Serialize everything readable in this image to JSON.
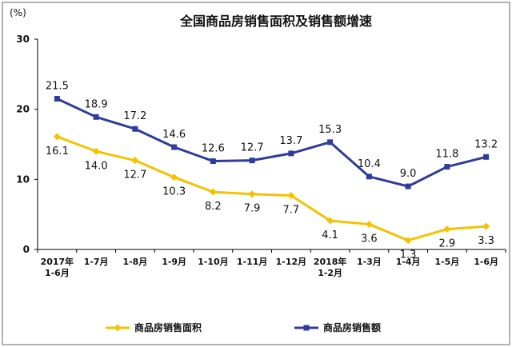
{
  "chart_data": {
    "type": "line",
    "title": "全国商品房销售面积及销售额增速",
    "ylabel": "(%)",
    "xlabel": "",
    "ylim": [
      0,
      30
    ],
    "yticks": [
      0,
      10,
      20,
      30
    ],
    "grid": false,
    "legend_position": "bottom",
    "categories": [
      "2017年\n1-6月",
      "1-7月",
      "1-8月",
      "1-9月",
      "1-10月",
      "1-11月",
      "1-12月",
      "2018年\n1-2月",
      "1-3月",
      "1-4月",
      "1-5月",
      "1-6月"
    ],
    "series": [
      {
        "name": "商品房销售面积",
        "color": "#F5C200",
        "marker": "diamond",
        "values": [
          16.1,
          14.0,
          12.7,
          10.3,
          8.2,
          7.9,
          7.7,
          4.1,
          3.6,
          1.3,
          2.9,
          3.3
        ]
      },
      {
        "name": "商品房销售额",
        "color": "#2F3C9A",
        "marker": "square",
        "values": [
          21.5,
          18.9,
          17.2,
          14.6,
          12.6,
          12.7,
          13.7,
          15.3,
          10.4,
          9.0,
          11.8,
          13.2
        ]
      }
    ]
  }
}
